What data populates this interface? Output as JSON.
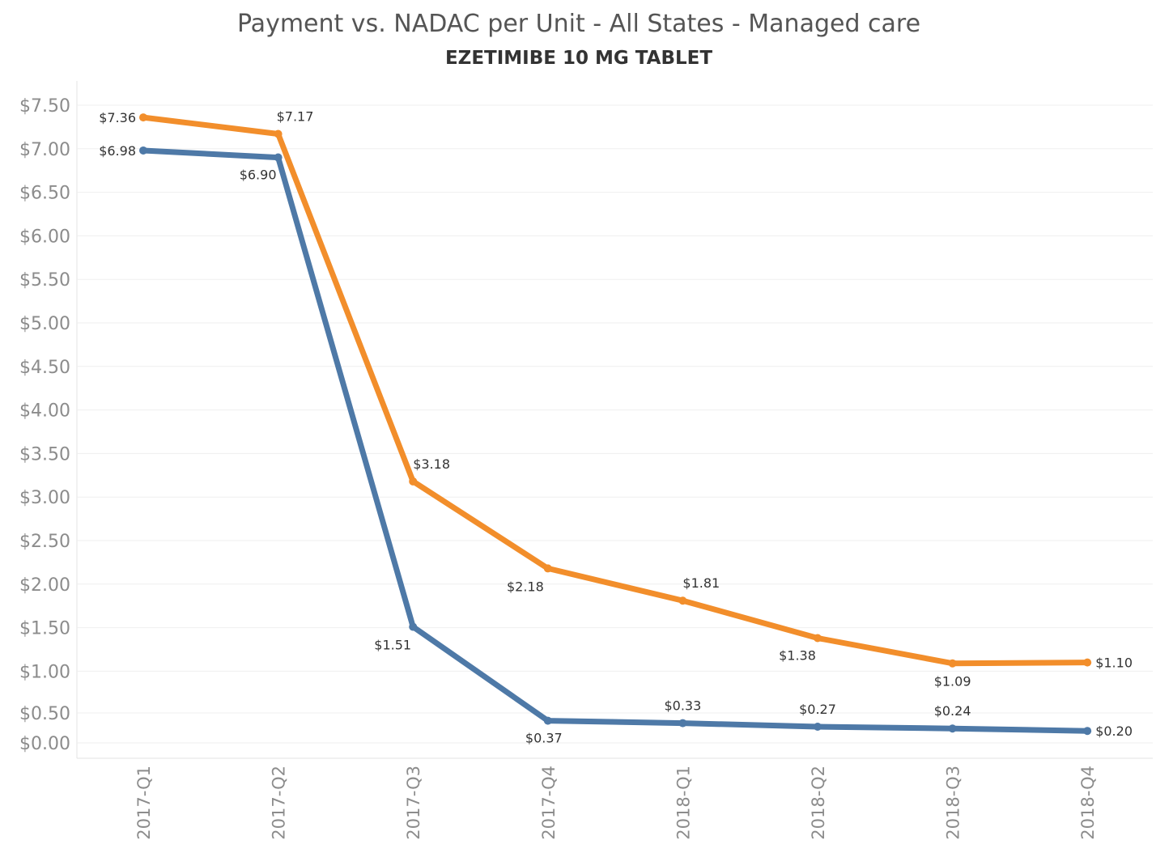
{
  "chart_data": {
    "type": "line",
    "title": "Payment vs. NADAC per Unit - All States - Managed care",
    "subtitle": "EZETIMIBE 10 MG TABLET",
    "categories": [
      "2017-Q1",
      "2017-Q2",
      "2017-Q3",
      "2017-Q4",
      "2018-Q1",
      "2018-Q2",
      "2018-Q3",
      "2018-Q4"
    ],
    "series": [
      {
        "color": "#f28e2b",
        "values": [
          7.36,
          7.17,
          3.18,
          2.18,
          1.81,
          1.38,
          1.09,
          1.1
        ],
        "labels": [
          "$7.36",
          "$7.17",
          "$3.18",
          "$2.18",
          "$1.81",
          "$1.38",
          "$1.09",
          "$1.10"
        ]
      },
      {
        "color": "#4e79a7",
        "values": [
          6.98,
          6.9,
          1.51,
          0.37,
          0.33,
          0.27,
          0.24,
          0.2
        ],
        "labels": [
          "$6.98",
          "$6.90",
          "$1.51",
          "$0.37",
          "$0.33",
          "$0.27",
          "$0.24",
          "$0.20"
        ]
      }
    ],
    "y_ticks": [
      {
        "value": 7.5,
        "label": "$7.50"
      },
      {
        "value": 7.0,
        "label": "$7.00"
      },
      {
        "value": 6.5,
        "label": "$6.50"
      },
      {
        "value": 6.0,
        "label": "$6.00"
      },
      {
        "value": 5.5,
        "label": "$5.50"
      },
      {
        "value": 5.0,
        "label": "$5.00"
      },
      {
        "value": 4.5,
        "label": "$4.50"
      },
      {
        "value": 4.0,
        "label": "$4.00"
      },
      {
        "value": 3.5,
        "label": "$3.50"
      },
      {
        "value": 3.0,
        "label": "$3.00"
      },
      {
        "value": 2.5,
        "label": "$2.50"
      },
      {
        "value": 2.0,
        "label": "$2.00"
      },
      {
        "value": 1.5,
        "label": "$1.50"
      },
      {
        "value": 1.0,
        "label": "$1.00"
      },
      {
        "value": 0.5,
        "label": "$0.50"
      },
      {
        "value": 0.0,
        "label": "$0.00"
      }
    ],
    "xlabel": "",
    "ylabel": "",
    "grid": true,
    "legend": "none"
  }
}
